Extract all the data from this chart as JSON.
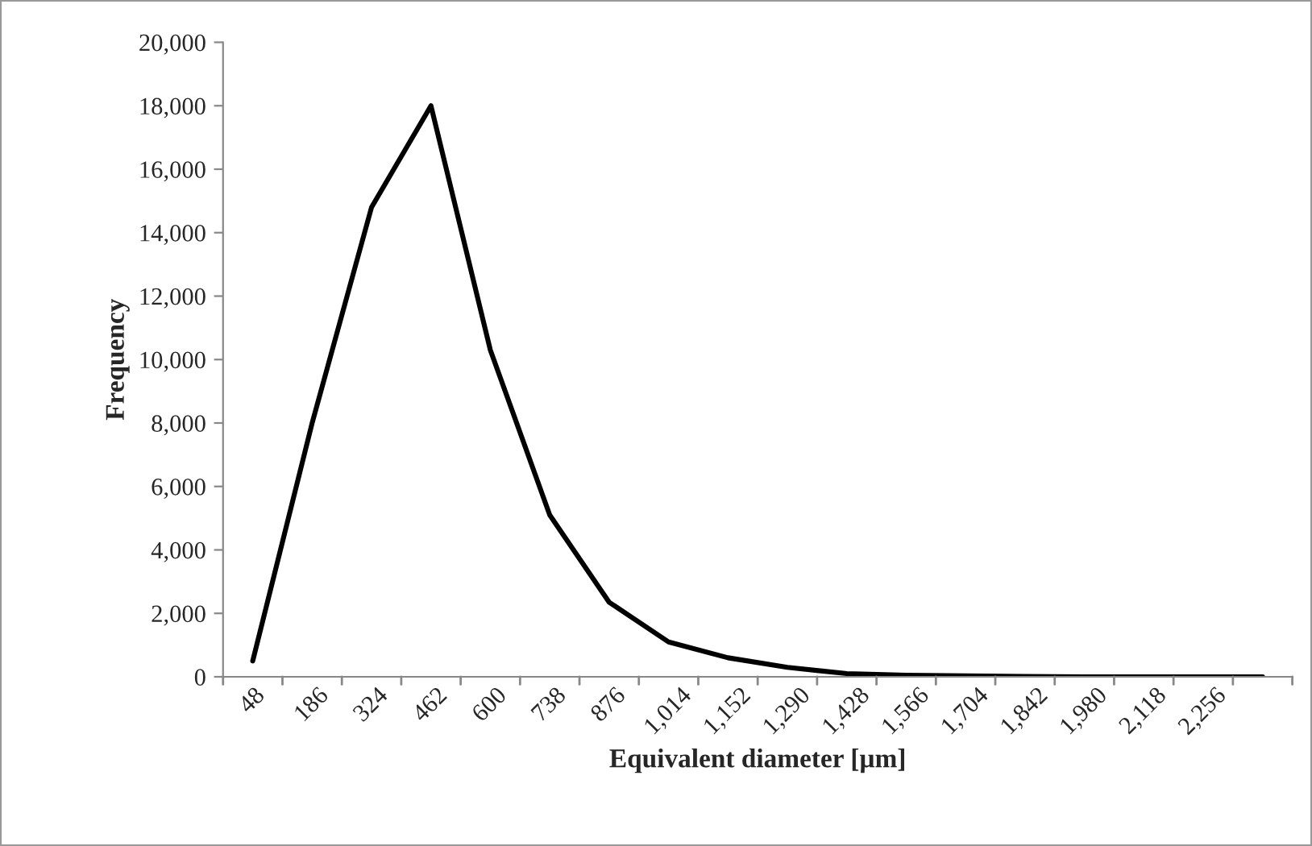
{
  "chart_data": {
    "type": "line",
    "xlabel": "Equivalent diameter [µm]",
    "ylabel": "Frequency",
    "categories": [
      "48",
      "186",
      "324",
      "462",
      "600",
      "738",
      "876",
      "1,014",
      "1,152",
      "1,290",
      "1,428",
      "1,566",
      "1,704",
      "1,842",
      "1,980",
      "2,118",
      "2,256",
      null
    ],
    "series": [
      {
        "color": "#000000",
        "values": [
          500,
          8000,
          14800,
          18000,
          10300,
          5100,
          2350,
          1100,
          600,
          300,
          100,
          50,
          30,
          10,
          0,
          0,
          0,
          0
        ]
      }
    ],
    "ylim": [
      0,
      20000
    ],
    "yticks": [
      {
        "value": 0,
        "label": "0"
      },
      {
        "value": 2000,
        "label": "2,000"
      },
      {
        "value": 4000,
        "label": "4,000"
      },
      {
        "value": 6000,
        "label": "6,000"
      },
      {
        "value": 8000,
        "label": "8,000"
      },
      {
        "value": 10000,
        "label": "10,000"
      },
      {
        "value": 12000,
        "label": "12,000"
      },
      {
        "value": 14000,
        "label": "14,000"
      },
      {
        "value": 16000,
        "label": "16,000"
      },
      {
        "value": 18000,
        "label": "18,000"
      },
      {
        "value": 20000,
        "label": "20,000"
      }
    ],
    "grid": false,
    "legend": false,
    "marker": "none",
    "line_style": "solid"
  }
}
